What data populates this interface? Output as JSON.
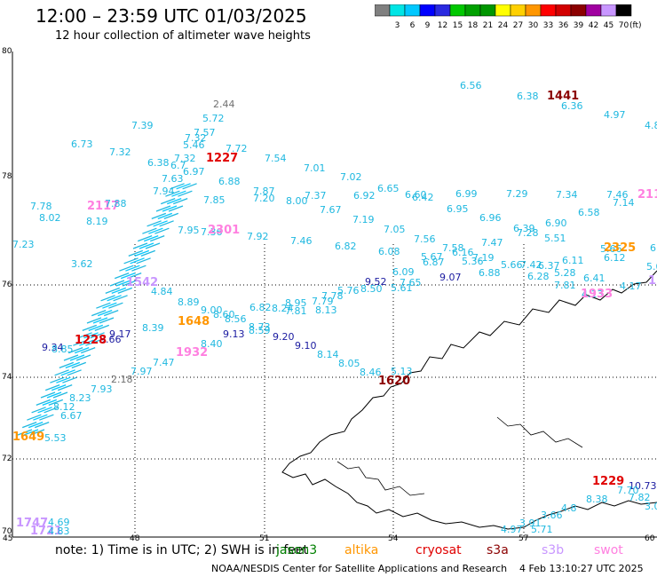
{
  "header": {
    "title": "12:00 – 23:59 UTC 01/03/2025",
    "subtitle": "12 hour collection of altimeter wave heights"
  },
  "legend": {
    "unit": "(ft)",
    "bins": [
      {
        "label": "",
        "color": "#808080"
      },
      {
        "label": "3",
        "color": "#00e5e5"
      },
      {
        "label": "6",
        "color": "#00c8ff"
      },
      {
        "label": "9",
        "color": "#0000ff"
      },
      {
        "label": "12",
        "color": "#2a2ae0"
      },
      {
        "label": "15",
        "color": "#00c800"
      },
      {
        "label": "18",
        "color": "#00a000"
      },
      {
        "label": "21",
        "color": "#009600"
      },
      {
        "label": "24",
        "color": "#ffff00"
      },
      {
        "label": "27",
        "color": "#ffd000"
      },
      {
        "label": "30",
        "color": "#ff9600"
      },
      {
        "label": "33",
        "color": "#ff0000"
      },
      {
        "label": "36",
        "color": "#d20000"
      },
      {
        "label": "39",
        "color": "#8b0000"
      },
      {
        "label": "42",
        "color": "#a000a0"
      },
      {
        "label": "45",
        "color": "#c896ff"
      },
      {
        "label": "70",
        "color": "#000000"
      }
    ]
  },
  "axes": {
    "lat_labels": [
      "80",
      "78",
      "76",
      "74",
      "72",
      "70"
    ],
    "lon_labels": [
      "45",
      "48",
      "51",
      "54",
      "57",
      "60"
    ]
  },
  "observations": {
    "colors": {
      "cyan": "#1fb8e0",
      "cyan2": "#00d0e0",
      "navy": "#1a1aa0",
      "gray": "#707070",
      "red": "#e00000",
      "darkred": "#8b0000",
      "orange": "#ff9600",
      "pink": "#ff80e0",
      "lavender": "#c896ff"
    },
    "labels": [
      {
        "t": "2.44",
        "c": "gray"
      },
      {
        "t": "5.72",
        "c": "cyan"
      },
      {
        "t": "7.57",
        "c": "cyan"
      },
      {
        "t": "7.32",
        "c": "cyan"
      },
      {
        "t": "5.46",
        "c": "cyan"
      },
      {
        "t": "7.72",
        "c": "cyan"
      },
      {
        "t": "7.39",
        "c": "cyan"
      },
      {
        "t": "6.73",
        "c": "cyan"
      },
      {
        "t": "7.32",
        "c": "cyan"
      },
      {
        "t": "7.32",
        "c": "cyan"
      },
      {
        "t": "1227",
        "c": "red"
      },
      {
        "t": "6.38",
        "c": "cyan"
      },
      {
        "t": "6.7",
        "c": "cyan"
      },
      {
        "t": "6.97",
        "c": "cyan"
      },
      {
        "t": "7.54",
        "c": "cyan"
      },
      {
        "t": "7.01",
        "c": "cyan"
      },
      {
        "t": "7.63",
        "c": "cyan"
      },
      {
        "t": "6.88",
        "c": "cyan"
      },
      {
        "t": "7.02",
        "c": "cyan"
      },
      {
        "t": "6.65",
        "c": "cyan"
      },
      {
        "t": "6.56",
        "c": "cyan"
      },
      {
        "t": "6.38",
        "c": "cyan"
      },
      {
        "t": "1441",
        "c": "darkred"
      },
      {
        "t": "6.36",
        "c": "cyan"
      },
      {
        "t": "4.97",
        "c": "cyan"
      },
      {
        "t": "4.8",
        "c": "cyan"
      },
      {
        "t": "7.94",
        "c": "cyan"
      },
      {
        "t": "7.78",
        "c": "cyan"
      },
      {
        "t": "2117",
        "c": "pink"
      },
      {
        "t": "7.88",
        "c": "cyan"
      },
      {
        "t": "7.85",
        "c": "cyan"
      },
      {
        "t": "7.87",
        "c": "cyan"
      },
      {
        "t": "7.20",
        "c": "cyan"
      },
      {
        "t": "8.00",
        "c": "cyan"
      },
      {
        "t": "7.37",
        "c": "cyan"
      },
      {
        "t": "6.92",
        "c": "cyan"
      },
      {
        "t": "6.60",
        "c": "cyan"
      },
      {
        "t": "6.42",
        "c": "cyan"
      },
      {
        "t": "6.99",
        "c": "cyan"
      },
      {
        "t": "7.29",
        "c": "cyan"
      },
      {
        "t": "7.34",
        "c": "cyan"
      },
      {
        "t": "7.46",
        "c": "cyan"
      },
      {
        "t": "2117",
        "c": "pink"
      },
      {
        "t": "7.14",
        "c": "cyan"
      },
      {
        "t": "8.02",
        "c": "cyan"
      },
      {
        "t": "8.19",
        "c": "cyan"
      },
      {
        "t": "7.67",
        "c": "cyan"
      },
      {
        "t": "6.95",
        "c": "cyan"
      },
      {
        "t": "6.96",
        "c": "cyan"
      },
      {
        "t": "6.90",
        "c": "cyan"
      },
      {
        "t": "6.58",
        "c": "cyan"
      },
      {
        "t": "7.95",
        "c": "cyan"
      },
      {
        "t": "7.36",
        "c": "cyan"
      },
      {
        "t": "2301",
        "c": "pink"
      },
      {
        "t": "7.92",
        "c": "cyan"
      },
      {
        "t": "7.19",
        "c": "cyan"
      },
      {
        "t": "7.05",
        "c": "cyan"
      },
      {
        "t": "6.39",
        "c": "cyan"
      },
      {
        "t": "7.28",
        "c": "cyan"
      },
      {
        "t": "7.23",
        "c": "cyan"
      },
      {
        "t": "7.46",
        "c": "cyan"
      },
      {
        "t": "6.82",
        "c": "cyan"
      },
      {
        "t": "7.56",
        "c": "cyan"
      },
      {
        "t": "7.47",
        "c": "cyan"
      },
      {
        "t": "5.51",
        "c": "cyan"
      },
      {
        "t": "5.66",
        "c": "cyan"
      },
      {
        "t": "2325",
        "c": "orange"
      },
      {
        "t": "6.60",
        "c": "cyan"
      },
      {
        "t": "6.08",
        "c": "cyan"
      },
      {
        "t": "7.58",
        "c": "cyan"
      },
      {
        "t": "5.67",
        "c": "cyan"
      },
      {
        "t": "6.16",
        "c": "cyan"
      },
      {
        "t": "6.87",
        "c": "cyan"
      },
      {
        "t": "7.19",
        "c": "cyan"
      },
      {
        "t": "5.36",
        "c": "cyan"
      },
      {
        "t": "6.11",
        "c": "cyan"
      },
      {
        "t": "6.12",
        "c": "cyan"
      },
      {
        "t": "5.04",
        "c": "cyan"
      },
      {
        "t": "3.62",
        "c": "cyan"
      },
      {
        "t": "6.09",
        "c": "cyan"
      },
      {
        "t": "6.88",
        "c": "cyan"
      },
      {
        "t": "5.66",
        "c": "cyan"
      },
      {
        "t": "7.42",
        "c": "cyan"
      },
      {
        "t": "6.37",
        "c": "cyan"
      },
      {
        "t": "1542",
        "c": "lavender"
      },
      {
        "t": "9.07",
        "c": "navy"
      },
      {
        "t": "6.28",
        "c": "cyan"
      },
      {
        "t": "5.28",
        "c": "cyan"
      },
      {
        "t": "6.41",
        "c": "cyan"
      },
      {
        "t": "4.84",
        "c": "cyan"
      },
      {
        "t": "9.52",
        "c": "navy"
      },
      {
        "t": "7.65",
        "c": "cyan"
      },
      {
        "t": "7.81",
        "c": "cyan"
      },
      {
        "t": "4.13",
        "c": "cyan"
      },
      {
        "t": "5.61",
        "c": "cyan"
      },
      {
        "t": "1933",
        "c": "pink"
      },
      {
        "t": "4.17",
        "c": "cyan"
      },
      {
        "t": "1541",
        "c": "lavender"
      },
      {
        "t": "5.76",
        "c": "cyan"
      },
      {
        "t": "8.50",
        "c": "cyan"
      },
      {
        "t": "8.89",
        "c": "cyan"
      },
      {
        "t": "8.95",
        "c": "cyan"
      },
      {
        "t": "7.79",
        "c": "cyan"
      },
      {
        "t": "7.78",
        "c": "cyan"
      },
      {
        "t": "6.82",
        "c": "cyan"
      },
      {
        "t": "9.00",
        "c": "cyan"
      },
      {
        "t": "8.60",
        "c": "cyan"
      },
      {
        "t": "8.24",
        "c": "cyan"
      },
      {
        "t": "7.81",
        "c": "cyan"
      },
      {
        "t": "8.13",
        "c": "cyan"
      },
      {
        "t": "1648",
        "c": "orange"
      },
      {
        "t": "8.56",
        "c": "cyan"
      },
      {
        "t": "8.73",
        "c": "cyan"
      },
      {
        "t": "8.59",
        "c": "cyan"
      },
      {
        "t": "8.39",
        "c": "cyan"
      },
      {
        "t": "9.13",
        "c": "navy"
      },
      {
        "t": "9.17",
        "c": "navy"
      },
      {
        "t": "9.66",
        "c": "navy"
      },
      {
        "t": "1228",
        "c": "red"
      },
      {
        "t": "9.34",
        "c": "navy"
      },
      {
        "t": "9.20",
        "c": "navy"
      },
      {
        "t": "8.40",
        "c": "cyan"
      },
      {
        "t": "9.10",
        "c": "navy"
      },
      {
        "t": "8.85",
        "c": "cyan"
      },
      {
        "t": "1932",
        "c": "pink"
      },
      {
        "t": "8.14",
        "c": "cyan"
      },
      {
        "t": "7.47",
        "c": "cyan"
      },
      {
        "t": "8.05",
        "c": "cyan"
      },
      {
        "t": "7.97",
        "c": "cyan"
      },
      {
        "t": "8.46",
        "c": "cyan"
      },
      {
        "t": "5.13",
        "c": "cyan"
      },
      {
        "t": "1620",
        "c": "darkred"
      },
      {
        "t": "2.18",
        "c": "gray"
      },
      {
        "t": "7.93",
        "c": "cyan"
      },
      {
        "t": "8.23",
        "c": "cyan"
      },
      {
        "t": "8.12",
        "c": "cyan"
      },
      {
        "t": "6.67",
        "c": "cyan"
      },
      {
        "t": "1649",
        "c": "orange"
      },
      {
        "t": "5.53",
        "c": "cyan"
      },
      {
        "t": "1229",
        "c": "red"
      },
      {
        "t": "10.73",
        "c": "navy"
      },
      {
        "t": "7.70",
        "c": "cyan"
      },
      {
        "t": "7.82",
        "c": "cyan"
      },
      {
        "t": "8.38",
        "c": "cyan"
      },
      {
        "t": "3.05",
        "c": "cyan"
      },
      {
        "t": "4.8",
        "c": "cyan"
      },
      {
        "t": "3.66",
        "c": "cyan"
      },
      {
        "t": "3.91",
        "c": "cyan"
      },
      {
        "t": "4.97",
        "c": "cyan"
      },
      {
        "t": "5.71",
        "c": "cyan"
      },
      {
        "t": "1747",
        "c": "lavender"
      },
      {
        "t": "4.69",
        "c": "cyan"
      },
      {
        "t": "1721",
        "c": "lavender"
      },
      {
        "t": "4.83",
        "c": "cyan"
      },
      {
        "t": "1720",
        "c": "lavender"
      }
    ]
  },
  "footer": {
    "note": "note:  1) Time is in UTC;  2) SWH is in feet",
    "satellites": [
      {
        "name": "jason3",
        "color": "#008000"
      },
      {
        "name": "altika",
        "color": "#ff9600"
      },
      {
        "name": "cryosat",
        "color": "#e00000"
      },
      {
        "name": "s3a",
        "color": "#8b0000"
      },
      {
        "name": "s3b",
        "color": "#c896ff"
      },
      {
        "name": "swot",
        "color": "#ff80e0"
      }
    ],
    "credits": "NOAA/NESDIS Center for Satellite Applications and Research",
    "timestamp": "4 Feb 13:10:27 UTC 2025"
  }
}
